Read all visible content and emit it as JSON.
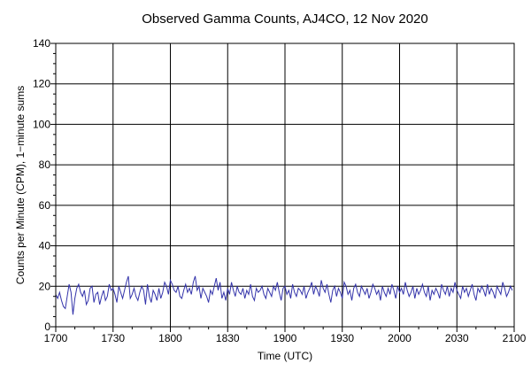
{
  "chart_data": {
    "type": "line",
    "title": "Observed Gamma Counts, AJ4CO, 12 Nov 2020",
    "xlabel": "Time (UTC)",
    "ylabel": "Counts per Minute (CPM), 1−minute sums",
    "ylim": [
      0,
      140
    ],
    "yticks": [
      "0",
      "20",
      "40",
      "60",
      "80",
      "100",
      "120",
      "140"
    ],
    "xticks": [
      "1700",
      "1730",
      "1800",
      "1830",
      "1900",
      "1930",
      "2000",
      "2030",
      "2100"
    ],
    "xlim_minutes_after_1700": [
      0,
      240
    ],
    "grid": true,
    "series": [
      {
        "color": "#3333aa",
        "x_start": "1700",
        "step_minutes": 1,
        "values": [
          16,
          14,
          17,
          13,
          10,
          9,
          15,
          21,
          17,
          6,
          14,
          19,
          21,
          17,
          15,
          18,
          11,
          13,
          19,
          20,
          12,
          16,
          17,
          11,
          15,
          18,
          13,
          15,
          21,
          18,
          19,
          16,
          12,
          20,
          17,
          14,
          18,
          22,
          25,
          14,
          16,
          19,
          15,
          13,
          17,
          20,
          18,
          11,
          21,
          15,
          12,
          18,
          16,
          13,
          19,
          14,
          17,
          22,
          20,
          16,
          23,
          21,
          18,
          17,
          20,
          15,
          14,
          18,
          21,
          17,
          19,
          16,
          22,
          25,
          18,
          20,
          14,
          19,
          17,
          15,
          12,
          18,
          16,
          20,
          24,
          18,
          22,
          14,
          17,
          13,
          19,
          16,
          22,
          18,
          15,
          20,
          17,
          16,
          19,
          14,
          18,
          16,
          21,
          15,
          13,
          19,
          17,
          18,
          20,
          16,
          14,
          19,
          17,
          15,
          20,
          18,
          22,
          17,
          13,
          19,
          20,
          16,
          18,
          14,
          21,
          17,
          15,
          19,
          18,
          16,
          20,
          14,
          17,
          19,
          22,
          16,
          20,
          18,
          15,
          23,
          19,
          17,
          21,
          16,
          12,
          18,
          20,
          15,
          19,
          17,
          14,
          22,
          20,
          16,
          18,
          13,
          19,
          21,
          17,
          15,
          20,
          18,
          16,
          19,
          14,
          17,
          21,
          19,
          16,
          18,
          13,
          20,
          17,
          15,
          19,
          16,
          21,
          18,
          14,
          20,
          17,
          19,
          16,
          22,
          18,
          15,
          17,
          20,
          14,
          19,
          16,
          18,
          21,
          17,
          15,
          20,
          13,
          18,
          16,
          19,
          17,
          14,
          21,
          18,
          16,
          20,
          15,
          19,
          17,
          22,
          18,
          16,
          14,
          20,
          17,
          19,
          15,
          18,
          21,
          16,
          13,
          19,
          17,
          20,
          18,
          15,
          21,
          16,
          19,
          17,
          14,
          20,
          18,
          16,
          22,
          19,
          15,
          17,
          20,
          18
        ]
      }
    ]
  }
}
